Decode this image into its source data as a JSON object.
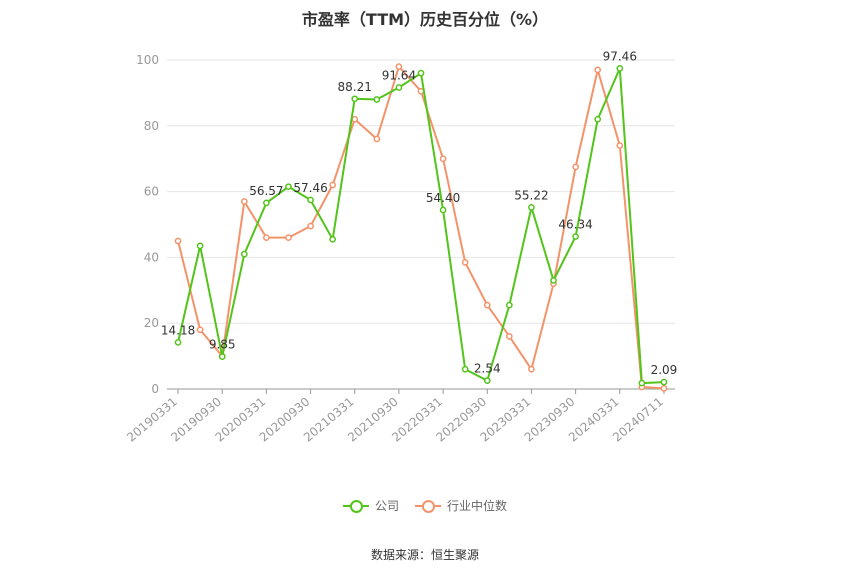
{
  "chart_data": {
    "type": "line",
    "title": "市盈率（TTM）历史百分位（%）",
    "ylim": [
      0,
      100
    ],
    "yticks": [
      0,
      20,
      40,
      60,
      80,
      100
    ],
    "tick_labels": [
      "20190331",
      "20190930",
      "20200331",
      "20200930",
      "20210331",
      "20210930",
      "20220331",
      "20220930",
      "20230331",
      "20230930",
      "20240331",
      "20240711"
    ],
    "x": [
      "20190331",
      "20190630",
      "20190930",
      "20191231",
      "20200331",
      "20200630",
      "20200930",
      "20201231",
      "20210331",
      "20210630",
      "20210930",
      "20211231",
      "20220331",
      "20220630",
      "20220930",
      "20221231",
      "20230331",
      "20230630",
      "20230930",
      "20231231",
      "20240331",
      "20240630",
      "20240711"
    ],
    "series": [
      {
        "name": "公司",
        "color": "#52c41a",
        "values": [
          14.18,
          43.5,
          9.85,
          41.0,
          56.57,
          61.5,
          57.46,
          45.5,
          88.21,
          88.0,
          91.64,
          96.0,
          54.4,
          6.0,
          2.54,
          25.5,
          55.22,
          33.0,
          46.34,
          82.0,
          97.46,
          1.8,
          2.09
        ],
        "data_labels": {
          "0": "14.18",
          "2": "9.85",
          "4": "56.57",
          "6": "57.46",
          "8": "88.21",
          "10": "91.64",
          "12": "54.40",
          "14": "2.54",
          "16": "55.22",
          "18": "46.34",
          "20": "97.46",
          "22": "2.09"
        }
      },
      {
        "name": "行业中位数",
        "color": "#f4936a",
        "values": [
          45.0,
          18.0,
          10.0,
          57.0,
          46.0,
          46.0,
          49.5,
          62.0,
          82.0,
          76.0,
          98.0,
          90.5,
          70.0,
          38.5,
          25.5,
          16.0,
          6.0,
          32.0,
          67.5,
          97.0,
          74.0,
          0.6,
          0.2
        ]
      }
    ],
    "grid": true,
    "legend_position": "bottom"
  },
  "source": "数据来源：恒生聚源"
}
